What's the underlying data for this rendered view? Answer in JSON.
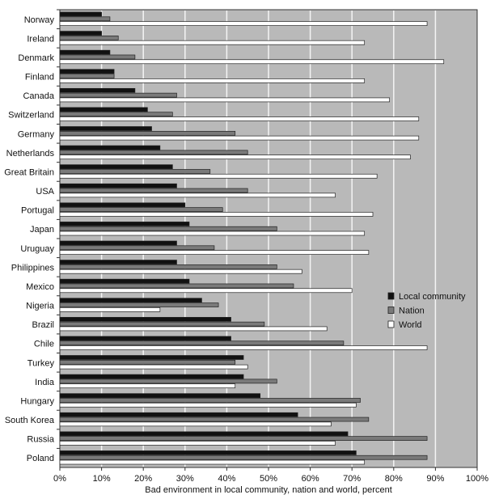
{
  "chart_data": {
    "type": "bar",
    "orientation": "horizontal",
    "title": "",
    "xlabel": "Bad environment in local community, nation and world, percent",
    "ylabel": "",
    "xlim": [
      0,
      100
    ],
    "x_ticks": [
      "0%",
      "10%",
      "20%",
      "30%",
      "40%",
      "50%",
      "60%",
      "70%",
      "80%",
      "90%",
      "100%"
    ],
    "grid": true,
    "legend_position": "right",
    "categories": [
      "Norway",
      "Ireland",
      "Denmark",
      "Finland",
      "Canada",
      "Switzerland",
      "Germany",
      "Netherlands",
      "Great Britain",
      "USA",
      "Portugal",
      "Japan",
      "Uruguay",
      "Philippines",
      "Mexico",
      "Nigeria",
      "Brazil",
      "Chile",
      "Turkey",
      "India",
      "Hungary",
      "South Korea",
      "Russia",
      "Poland"
    ],
    "series": [
      {
        "name": "Local community",
        "color": "#111111",
        "values": [
          10,
          10,
          12,
          13,
          18,
          21,
          22,
          24,
          27,
          28,
          30,
          31,
          28,
          28,
          31,
          34,
          41,
          41,
          44,
          44,
          48,
          57,
          69,
          71
        ]
      },
      {
        "name": "Nation",
        "color": "#7a7a7a",
        "values": [
          12,
          14,
          18,
          13,
          28,
          27,
          42,
          45,
          36,
          45,
          39,
          52,
          37,
          52,
          56,
          38,
          49,
          68,
          42,
          52,
          72,
          74,
          88,
          88
        ]
      },
      {
        "name": "World",
        "color": "#ffffff",
        "values": [
          88,
          73,
          92,
          73,
          79,
          86,
          86,
          84,
          76,
          66,
          75,
          73,
          74,
          58,
          70,
          24,
          64,
          88,
          45,
          42,
          71,
          65,
          66,
          73
        ]
      }
    ]
  }
}
